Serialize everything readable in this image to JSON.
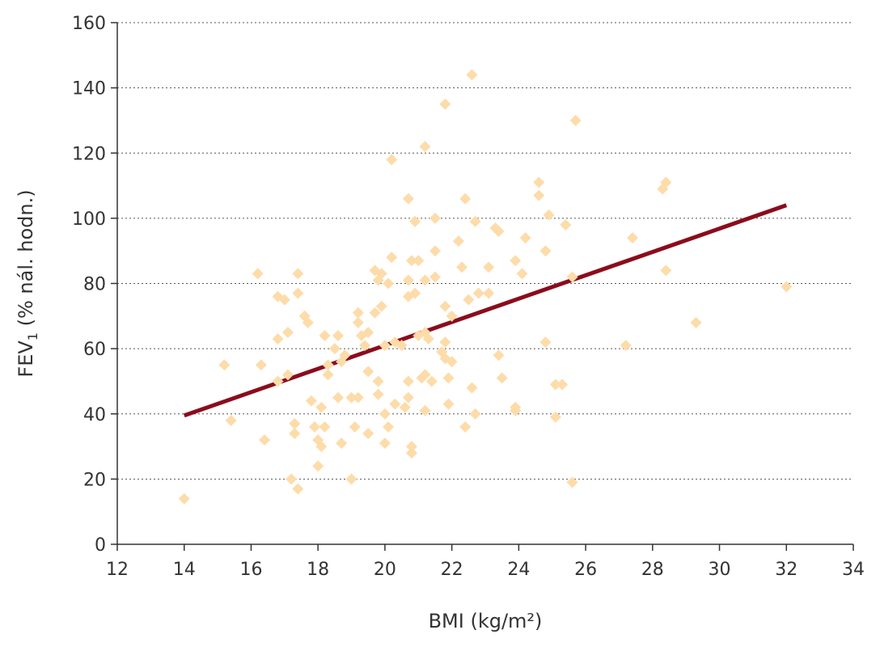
{
  "chart_data": {
    "type": "scatter",
    "xlabel": "BMI (kg/m²)",
    "ylabel": {
      "main": "FEV",
      "sub": "1",
      "rest": " (% nál. hodn.)"
    },
    "xlim": [
      12,
      34
    ],
    "ylim": [
      0,
      160
    ],
    "x_ticks": [
      "12",
      "14",
      "16",
      "18",
      "20",
      "22",
      "24",
      "26",
      "28",
      "30",
      "32",
      "34"
    ],
    "y_ticks": [
      "0",
      "20",
      "40",
      "60",
      "80",
      "100",
      "120",
      "140",
      "160"
    ],
    "grid": "horizontal-dotted",
    "colors": {
      "points": "#fddcaa",
      "trend": "#8b0c1c"
    },
    "trendline": {
      "x": [
        14,
        32
      ],
      "y": [
        39.5,
        104
      ]
    },
    "points": [
      [
        14.0,
        14
      ],
      [
        15.2,
        55
      ],
      [
        15.4,
        38
      ],
      [
        16.2,
        83
      ],
      [
        16.3,
        55
      ],
      [
        16.4,
        32
      ],
      [
        16.8,
        76
      ],
      [
        16.8,
        63
      ],
      [
        16.8,
        50
      ],
      [
        17.0,
        75
      ],
      [
        17.1,
        65
      ],
      [
        17.1,
        52
      ],
      [
        17.2,
        20
      ],
      [
        17.3,
        37
      ],
      [
        17.3,
        34
      ],
      [
        17.4,
        83
      ],
      [
        17.4,
        77
      ],
      [
        17.4,
        17
      ],
      [
        17.6,
        70
      ],
      [
        17.7,
        68
      ],
      [
        17.8,
        44
      ],
      [
        17.9,
        36
      ],
      [
        18.0,
        32
      ],
      [
        18.0,
        24
      ],
      [
        18.1,
        30
      ],
      [
        18.1,
        42
      ],
      [
        18.2,
        36
      ],
      [
        18.2,
        64
      ],
      [
        18.3,
        55
      ],
      [
        18.3,
        52
      ],
      [
        18.5,
        60
      ],
      [
        18.6,
        64
      ],
      [
        18.6,
        45
      ],
      [
        18.7,
        31
      ],
      [
        18.7,
        56
      ],
      [
        18.8,
        58
      ],
      [
        19.0,
        20
      ],
      [
        19.0,
        45
      ],
      [
        19.1,
        36
      ],
      [
        19.2,
        45
      ],
      [
        19.2,
        71
      ],
      [
        19.2,
        68
      ],
      [
        19.3,
        64
      ],
      [
        19.4,
        61
      ],
      [
        19.5,
        34
      ],
      [
        19.5,
        53
      ],
      [
        19.5,
        65
      ],
      [
        19.7,
        84
      ],
      [
        19.7,
        71
      ],
      [
        19.8,
        81
      ],
      [
        19.8,
        46
      ],
      [
        19.8,
        50
      ],
      [
        19.9,
        83
      ],
      [
        19.9,
        73
      ],
      [
        20.0,
        40
      ],
      [
        20.0,
        31
      ],
      [
        20.0,
        61
      ],
      [
        20.1,
        80
      ],
      [
        20.1,
        36
      ],
      [
        20.2,
        88
      ],
      [
        20.2,
        118
      ],
      [
        20.3,
        62
      ],
      [
        20.3,
        43
      ],
      [
        20.5,
        61
      ],
      [
        20.6,
        42
      ],
      [
        20.7,
        106
      ],
      [
        20.7,
        81
      ],
      [
        20.7,
        76
      ],
      [
        20.7,
        45
      ],
      [
        20.7,
        50
      ],
      [
        20.8,
        87
      ],
      [
        20.8,
        30
      ],
      [
        20.8,
        28
      ],
      [
        20.9,
        99
      ],
      [
        20.9,
        77
      ],
      [
        21.0,
        87
      ],
      [
        21.0,
        64
      ],
      [
        21.1,
        51
      ],
      [
        21.2,
        122
      ],
      [
        21.2,
        81
      ],
      [
        21.2,
        65
      ],
      [
        21.2,
        52
      ],
      [
        21.2,
        41
      ],
      [
        21.3,
        63
      ],
      [
        21.4,
        50
      ],
      [
        21.5,
        100
      ],
      [
        21.5,
        90
      ],
      [
        21.5,
        82
      ],
      [
        21.7,
        59
      ],
      [
        21.8,
        135
      ],
      [
        21.8,
        73
      ],
      [
        21.8,
        62
      ],
      [
        21.8,
        57
      ],
      [
        21.9,
        51
      ],
      [
        21.9,
        43
      ],
      [
        22.0,
        70
      ],
      [
        22.0,
        56
      ],
      [
        22.2,
        93
      ],
      [
        22.3,
        85
      ],
      [
        22.4,
        106
      ],
      [
        22.4,
        36
      ],
      [
        22.5,
        75
      ],
      [
        22.6,
        144
      ],
      [
        22.6,
        48
      ],
      [
        22.7,
        99
      ],
      [
        22.7,
        40
      ],
      [
        22.8,
        77
      ],
      [
        23.1,
        77
      ],
      [
        23.1,
        85
      ],
      [
        23.3,
        97
      ],
      [
        23.4,
        96
      ],
      [
        23.4,
        58
      ],
      [
        23.5,
        51
      ],
      [
        23.9,
        87
      ],
      [
        23.9,
        42
      ],
      [
        23.9,
        41
      ],
      [
        24.1,
        83
      ],
      [
        24.2,
        94
      ],
      [
        24.6,
        111
      ],
      [
        24.6,
        107
      ],
      [
        24.8,
        90
      ],
      [
        24.8,
        62
      ],
      [
        24.9,
        101
      ],
      [
        25.1,
        49
      ],
      [
        25.1,
        39
      ],
      [
        25.3,
        49
      ],
      [
        25.4,
        98
      ],
      [
        25.6,
        82
      ],
      [
        25.6,
        19
      ],
      [
        25.7,
        130
      ],
      [
        27.2,
        61
      ],
      [
        27.4,
        94
      ],
      [
        28.3,
        109
      ],
      [
        28.4,
        111
      ],
      [
        28.4,
        84
      ],
      [
        29.3,
        68
      ],
      [
        32.0,
        79
      ]
    ]
  }
}
